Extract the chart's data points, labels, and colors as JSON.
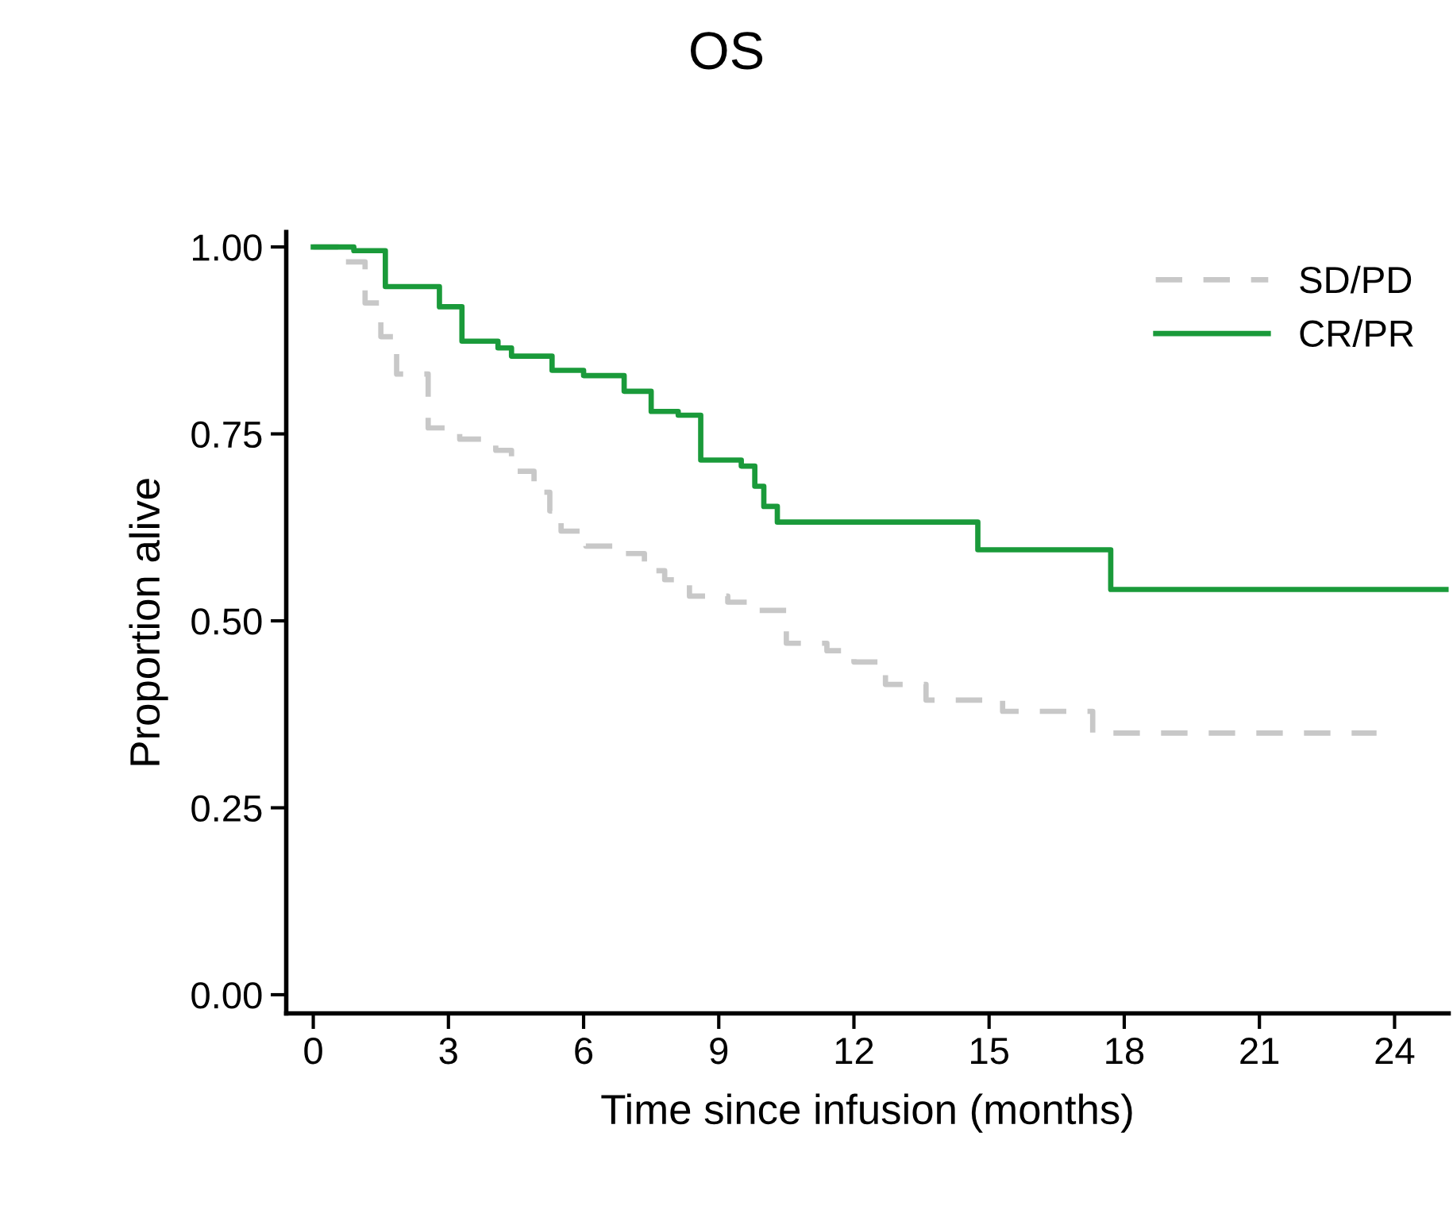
{
  "chart_data": {
    "type": "step",
    "title": "OS",
    "xlabel": "Time since infusion (months)",
    "ylabel": "Proportion alive",
    "xlim": [
      -0.6,
      25.2
    ],
    "ylim": [
      -0.025,
      1.02
    ],
    "xticks": [
      0,
      3,
      6,
      9,
      12,
      15,
      18,
      21,
      24
    ],
    "yticks": [
      {
        "value": 0,
        "label": "0.00"
      },
      {
        "value": 0.25,
        "label": "0.25"
      },
      {
        "value": 0.5,
        "label": "0.50"
      },
      {
        "value": 0.75,
        "label": "0.75"
      },
      {
        "value": 1,
        "label": "1.00"
      }
    ],
    "grid": false,
    "legend": "top right",
    "marker": "none",
    "series": [
      {
        "name": "SD/PD",
        "color": "#c8c8c8",
        "line_style": "dashed",
        "x": [
          0,
          0.55,
          1.15,
          1.5,
          1.85,
          2.55,
          3.25,
          4.05,
          4.4,
          4.9,
          5.25,
          5.5,
          6.05,
          6.75,
          7.35,
          7.8,
          8.35,
          9.2,
          9.8,
          10.5,
          11.4,
          12.0,
          12.7,
          13.6,
          15.3,
          17.3,
          23.6
        ],
        "values": [
          1.0,
          0.98,
          0.925,
          0.88,
          0.83,
          0.758,
          0.743,
          0.728,
          0.7,
          0.672,
          0.647,
          0.62,
          0.6,
          0.59,
          0.567,
          0.555,
          0.533,
          0.525,
          0.514,
          0.47,
          0.46,
          0.445,
          0.415,
          0.394,
          0.379,
          0.35,
          0.35
        ]
      },
      {
        "name": "CR/PR",
        "color": "#1a9a3a",
        "line_style": "solid",
        "x": [
          0,
          0.9,
          1.6,
          2.8,
          3.3,
          4.1,
          4.4,
          5.3,
          6.0,
          6.9,
          7.5,
          8.1,
          8.6,
          9.5,
          9.8,
          10.0,
          10.3,
          14.75,
          17.7,
          25.2
        ],
        "values": [
          1.0,
          0.995,
          0.947,
          0.92,
          0.874,
          0.865,
          0.854,
          0.835,
          0.828,
          0.807,
          0.78,
          0.775,
          0.715,
          0.707,
          0.68,
          0.653,
          0.632,
          0.595,
          0.542,
          0.542
        ]
      }
    ]
  }
}
